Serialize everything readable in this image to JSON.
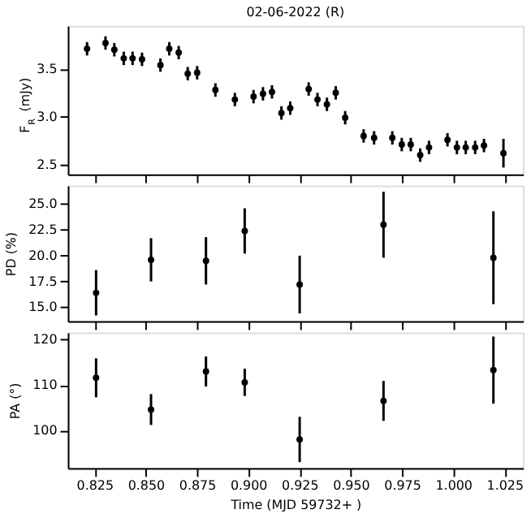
{
  "chart_data": [
    {
      "type": "scatter",
      "title": "02-06-2022  (R)",
      "ylabel": "F$_{R}$ (mJy)",
      "marker": "circle",
      "grid": false,
      "tick_labels": "y",
      "x": [
        0.8214,
        0.8304,
        0.8347,
        0.8393,
        0.8436,
        0.8482,
        0.8572,
        0.8615,
        0.8661,
        0.8705,
        0.8751,
        0.884,
        0.8935,
        0.9026,
        0.9072,
        0.9116,
        0.9162,
        0.9205,
        0.9295,
        0.9338,
        0.9384,
        0.9427,
        0.9473,
        0.9563,
        0.9614,
        0.9703,
        0.9749,
        0.9793,
        0.9839,
        0.9882,
        0.9972,
        1.0018,
        1.0061,
        1.0107,
        1.015,
        1.0245
      ],
      "series": [
        {
          "color": "#000000",
          "values": [
            3.71,
            3.77,
            3.7,
            3.61,
            3.61,
            3.6,
            3.54,
            3.71,
            3.67,
            3.45,
            3.46,
            3.28,
            3.18,
            3.21,
            3.24,
            3.26,
            3.04,
            3.09,
            3.29,
            3.18,
            3.13,
            3.25,
            2.99,
            2.8,
            2.78,
            2.78,
            2.71,
            2.71,
            2.6,
            2.68,
            2.76,
            2.68,
            2.68,
            2.68,
            2.7,
            2.62
          ],
          "errors": [
            0.07,
            0.07,
            0.07,
            0.07,
            0.07,
            0.07,
            0.07,
            0.07,
            0.07,
            0.07,
            0.07,
            0.07,
            0.07,
            0.07,
            0.07,
            0.07,
            0.07,
            0.07,
            0.07,
            0.07,
            0.07,
            0.07,
            0.07,
            0.07,
            0.07,
            0.07,
            0.07,
            0.07,
            0.07,
            0.07,
            0.07,
            0.07,
            0.07,
            0.07,
            0.07,
            0.15
          ]
        }
      ],
      "xlim": [
        0.812,
        1.034
      ],
      "xticks": [
        0.825,
        0.85,
        0.875,
        0.9,
        0.925,
        0.95,
        0.975,
        1.0,
        1.025
      ],
      "ylim": [
        2.4,
        3.95
      ],
      "yticks": [
        2.5,
        {
          "value": 3.0,
          "label": "3.0"
        },
        3.5
      ]
    },
    {
      "type": "scatter",
      "ylabel": "PD (%)",
      "marker": "circle",
      "grid": false,
      "tick_labels": "y",
      "x": [
        0.8258,
        0.8526,
        0.8794,
        0.8983,
        0.9251,
        0.966,
        1.0196
      ],
      "series": [
        {
          "color": "#000000",
          "values": [
            16.4,
            19.6,
            19.5,
            22.4,
            17.2,
            23.0,
            19.8
          ],
          "errors": [
            2.2,
            2.1,
            2.3,
            2.2,
            2.8,
            3.2,
            4.5
          ]
        }
      ],
      "xlim": [
        0.812,
        1.034
      ],
      "xticks": [
        0.825,
        0.85,
        0.875,
        0.9,
        0.925,
        0.95,
        0.975,
        1.0,
        1.025
      ],
      "ylim": [
        13.65,
        26.8
      ],
      "yticks": [
        {
          "value": 15,
          "label": "15.0"
        },
        17.5,
        {
          "value": 20,
          "label": "20.0"
        },
        22.5,
        {
          "value": 25,
          "label": "25.0"
        }
      ]
    },
    {
      "type": "scatter",
      "ylabel": "PA (°)",
      "xlabel": "Time (MJD 59732+ )",
      "marker": "circle",
      "grid": false,
      "x": [
        0.8258,
        0.8526,
        0.8794,
        0.8983,
        0.9251,
        0.966,
        1.0196
      ],
      "series": [
        {
          "color": "#000000",
          "values": [
            111.6,
            104.6,
            113.0,
            110.6,
            98.0,
            106.5,
            113.3
          ],
          "errors": [
            4.3,
            3.4,
            3.3,
            3.0,
            5.0,
            4.4,
            7.4
          ]
        }
      ],
      "xlim": [
        0.812,
        1.034
      ],
      "xticks": [
        {
          "value": 0.825,
          "label": "0.825"
        },
        {
          "value": 0.85,
          "label": "0.850"
        },
        {
          "value": 0.875,
          "label": "0.875"
        },
        {
          "value": 0.9,
          "label": "0.900"
        },
        {
          "value": 0.925,
          "label": "0.925"
        },
        {
          "value": 0.95,
          "label": "0.950"
        },
        {
          "value": 0.975,
          "label": "0.975"
        },
        {
          "value": 1.0,
          "label": "1.000"
        },
        {
          "value": 1.025,
          "label": "1.025"
        }
      ],
      "ylim": [
        91.7,
        121.6
      ],
      "yticks": [
        100,
        110,
        120
      ]
    }
  ]
}
